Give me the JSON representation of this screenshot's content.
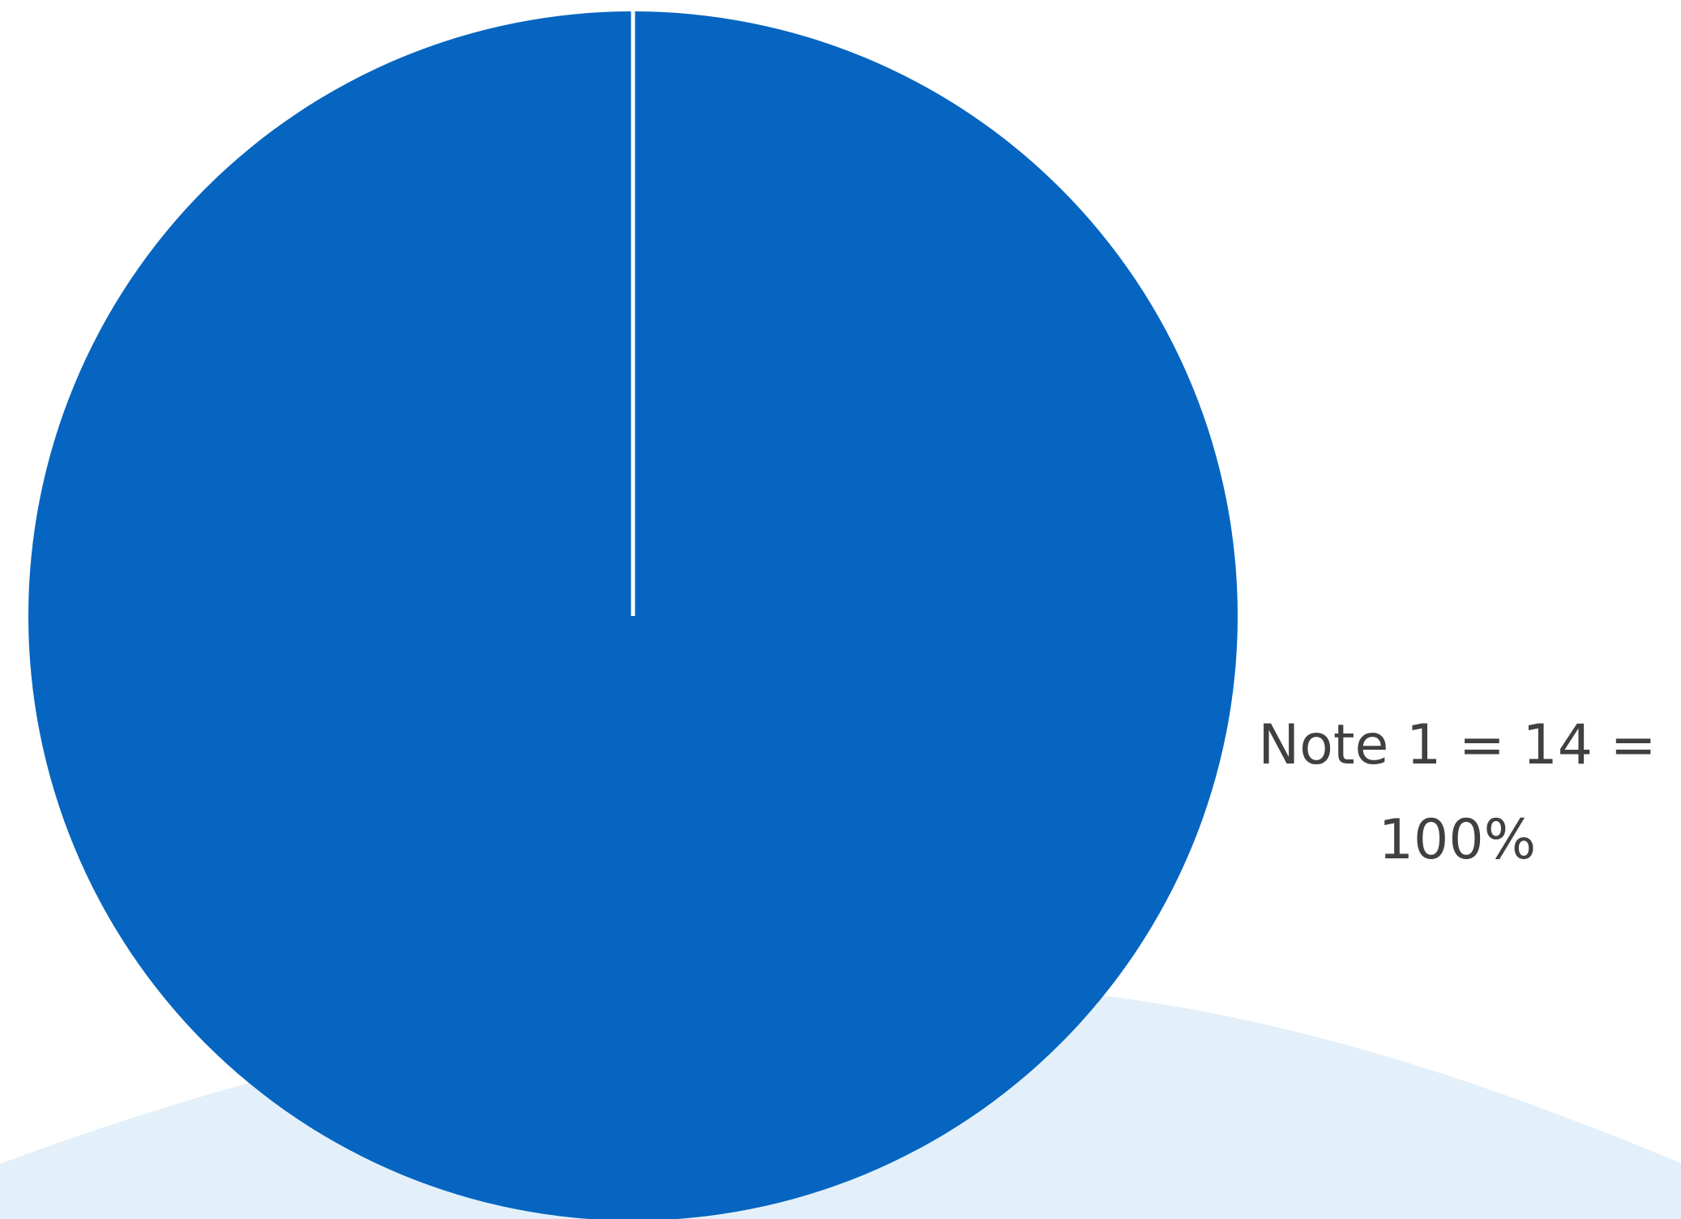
{
  "chart_data": {
    "type": "pie",
    "slices": [
      {
        "category": "Note 1",
        "count": 14,
        "percent": 100,
        "label_lines": [
          "Note 1 = 14 =",
          "100%"
        ]
      }
    ],
    "colors": {
      "slice": "#0565C0",
      "separator": "#FFFFFF",
      "background_arc": "#E3F0F9",
      "label_text": "#404040"
    },
    "start_angle_position": "top",
    "legend": "none"
  }
}
